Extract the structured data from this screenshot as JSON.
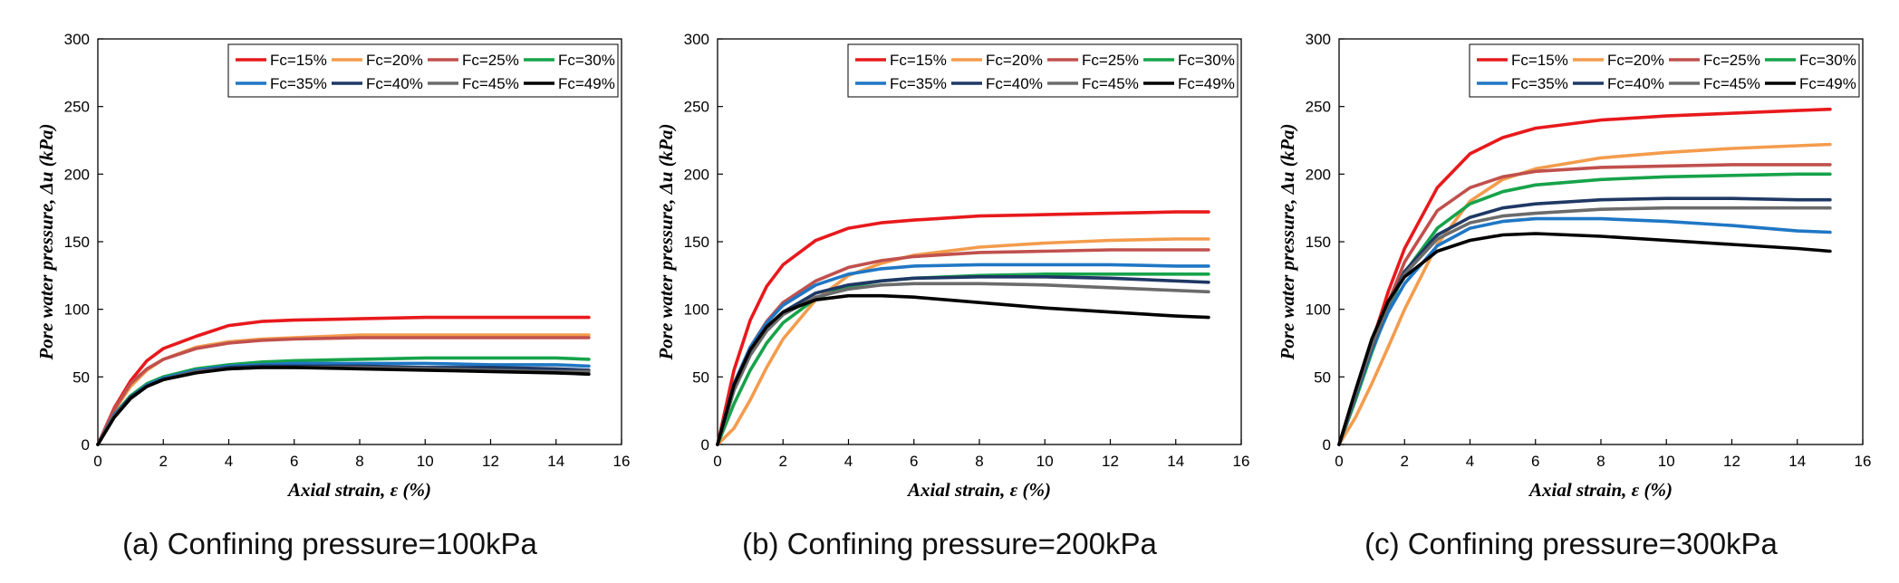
{
  "chart_data": [
    {
      "type": "line",
      "caption": "(a) Confining pressure=100kPa",
      "xlabel": "Axial strain, ε (%)",
      "ylabel": "Pore water pressure, Δu (kPa)",
      "xlim": [
        0,
        16
      ],
      "ylim": [
        0,
        300
      ],
      "xticks": [
        "0",
        "2",
        "4",
        "6",
        "8",
        "10",
        "12",
        "14",
        "16"
      ],
      "yticks": [
        "0",
        "50",
        "100",
        "150",
        "200",
        "250",
        "300"
      ],
      "grid": false,
      "legend": "top-right",
      "x": [
        0,
        0.5,
        1,
        1.5,
        2,
        3,
        4,
        5,
        6,
        8,
        10,
        12,
        14,
        15
      ],
      "series": [
        {
          "name": "Fc=15%",
          "color": "#e8191c",
          "values": [
            0,
            27,
            47,
            62,
            71,
            80,
            88,
            91,
            92,
            93,
            94,
            94,
            94,
            94
          ]
        },
        {
          "name": "Fc=20%",
          "color": "#f39c4d",
          "values": [
            0,
            25,
            43,
            55,
            63,
            72,
            76,
            78,
            79,
            81,
            81,
            81,
            81,
            81
          ]
        },
        {
          "name": "Fc=25%",
          "color": "#c0504d",
          "values": [
            0,
            26,
            45,
            56,
            63,
            71,
            75,
            77,
            78,
            79,
            79,
            79,
            79,
            79
          ]
        },
        {
          "name": "Fc=30%",
          "color": "#16a34a",
          "values": [
            0,
            22,
            36,
            45,
            50,
            56,
            59,
            61,
            62,
            63,
            64,
            64,
            64,
            63
          ]
        },
        {
          "name": "Fc=35%",
          "color": "#1f77c4",
          "values": [
            0,
            22,
            35,
            44,
            49,
            55,
            58,
            59,
            60,
            60,
            60,
            59,
            59,
            58
          ]
        },
        {
          "name": "Fc=40%",
          "color": "#1f3864",
          "values": [
            0,
            21,
            35,
            43,
            48,
            54,
            57,
            58,
            58,
            58,
            57,
            57,
            56,
            55
          ]
        },
        {
          "name": "Fc=45%",
          "color": "#6b6b6b",
          "values": [
            0,
            21,
            34,
            43,
            48,
            54,
            56,
            57,
            57,
            57,
            56,
            55,
            54,
            54
          ]
        },
        {
          "name": "Fc=49%",
          "color": "#000000",
          "values": [
            0,
            20,
            34,
            43,
            48,
            53,
            56,
            57,
            57,
            56,
            55,
            54,
            53,
            52
          ]
        }
      ]
    },
    {
      "type": "line",
      "caption": "(b) Confining pressure=200kPa",
      "xlabel": "Axial strain, ε (%)",
      "ylabel": "Pore water pressure, Δu (kPa)",
      "xlim": [
        0,
        16
      ],
      "ylim": [
        0,
        300
      ],
      "xticks": [
        "0",
        "2",
        "4",
        "6",
        "8",
        "10",
        "12",
        "14",
        "16"
      ],
      "yticks": [
        "0",
        "50",
        "100",
        "150",
        "200",
        "250",
        "300"
      ],
      "grid": false,
      "legend": "top-right",
      "x": [
        0,
        0.5,
        1,
        1.5,
        2,
        3,
        4,
        5,
        6,
        8,
        10,
        12,
        14,
        15
      ],
      "series": [
        {
          "name": "Fc=15%",
          "color": "#e8191c",
          "values": [
            0,
            55,
            92,
            117,
            133,
            151,
            160,
            164,
            166,
            169,
            170,
            171,
            172,
            172
          ]
        },
        {
          "name": "Fc=20%",
          "color": "#f39c4d",
          "values": [
            0,
            12,
            33,
            57,
            78,
            107,
            125,
            134,
            140,
            146,
            149,
            151,
            152,
            152
          ]
        },
        {
          "name": "Fc=25%",
          "color": "#c0504d",
          "values": [
            0,
            45,
            72,
            91,
            105,
            121,
            131,
            136,
            139,
            142,
            143,
            144,
            144,
            144
          ]
        },
        {
          "name": "Fc=30%",
          "color": "#16a34a",
          "values": [
            0,
            30,
            55,
            75,
            90,
            108,
            117,
            121,
            123,
            125,
            126,
            126,
            126,
            126
          ]
        },
        {
          "name": "Fc=35%",
          "color": "#1f77c4",
          "values": [
            0,
            45,
            72,
            90,
            103,
            118,
            126,
            130,
            132,
            133,
            133,
            133,
            132,
            132
          ]
        },
        {
          "name": "Fc=40%",
          "color": "#1f3864",
          "values": [
            0,
            42,
            68,
            86,
            98,
            112,
            118,
            121,
            123,
            124,
            124,
            123,
            121,
            120
          ]
        },
        {
          "name": "Fc=45%",
          "color": "#6b6b6b",
          "values": [
            0,
            40,
            66,
            84,
            96,
            109,
            115,
            118,
            119,
            119,
            118,
            116,
            114,
            113
          ]
        },
        {
          "name": "Fc=49%",
          "color": "#000000",
          "values": [
            0,
            44,
            70,
            87,
            98,
            107,
            110,
            110,
            109,
            105,
            101,
            98,
            95,
            94
          ]
        }
      ]
    },
    {
      "type": "line",
      "caption": "(c) Confining pressure=300kPa",
      "xlabel": "Axial strain, ε (%)",
      "ylabel": "Pore water pressure, Δu (kPa)",
      "xlim": [
        0,
        16
      ],
      "ylim": [
        0,
        300
      ],
      "xticks": [
        "0",
        "2",
        "4",
        "6",
        "8",
        "10",
        "12",
        "14",
        "16"
      ],
      "yticks": [
        "0",
        "50",
        "100",
        "150",
        "200",
        "250",
        "300"
      ],
      "grid": false,
      "legend": "top-right",
      "x": [
        0,
        0.5,
        1,
        1.5,
        2,
        3,
        4,
        5,
        6,
        8,
        10,
        12,
        14,
        15
      ],
      "series": [
        {
          "name": "Fc=15%",
          "color": "#e8191c",
          "values": [
            0,
            35,
            75,
            113,
            145,
            190,
            215,
            227,
            234,
            240,
            243,
            245,
            247,
            248
          ]
        },
        {
          "name": "Fc=20%",
          "color": "#f39c4d",
          "values": [
            0,
            20,
            45,
            72,
            100,
            148,
            180,
            196,
            204,
            212,
            216,
            219,
            221,
            222
          ]
        },
        {
          "name": "Fc=25%",
          "color": "#c0504d",
          "values": [
            0,
            33,
            70,
            105,
            135,
            173,
            190,
            198,
            202,
            205,
            206,
            207,
            207,
            207
          ]
        },
        {
          "name": "Fc=30%",
          "color": "#16a34a",
          "values": [
            0,
            33,
            68,
            100,
            127,
            160,
            178,
            187,
            192,
            196,
            198,
            199,
            200,
            200
          ]
        },
        {
          "name": "Fc=35%",
          "color": "#1f77c4",
          "values": [
            0,
            35,
            70,
            98,
            119,
            147,
            160,
            165,
            167,
            167,
            165,
            162,
            158,
            157
          ]
        },
        {
          "name": "Fc=40%",
          "color": "#1f3864",
          "values": [
            0,
            36,
            72,
            103,
            128,
            155,
            168,
            175,
            178,
            181,
            182,
            182,
            181,
            181
          ]
        },
        {
          "name": "Fc=45%",
          "color": "#6b6b6b",
          "values": [
            0,
            37,
            73,
            103,
            126,
            152,
            164,
            169,
            171,
            174,
            175,
            175,
            175,
            175
          ]
        },
        {
          "name": "Fc=49%",
          "color": "#000000",
          "values": [
            0,
            40,
            78,
            106,
            124,
            143,
            151,
            155,
            156,
            154,
            151,
            148,
            145,
            143
          ]
        }
      ]
    }
  ]
}
